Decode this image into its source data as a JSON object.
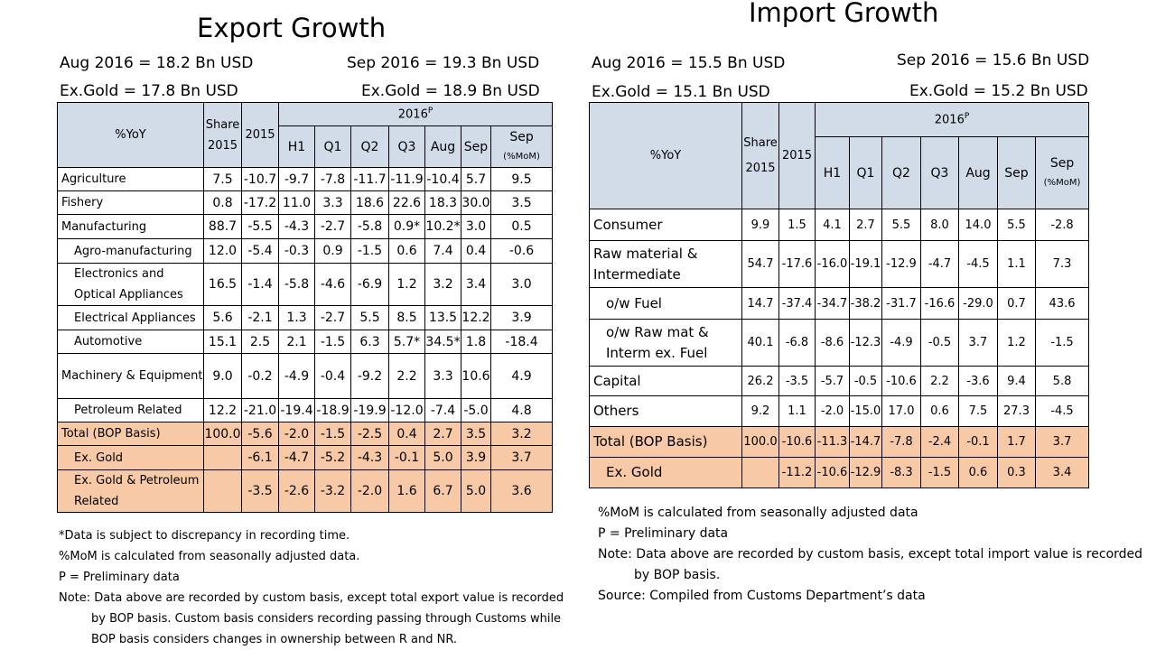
{
  "export": {
    "title": "Export Growth",
    "summary": {
      "aug": "Aug 2016 = 18.2 Bn USD",
      "sep": "Sep 2016 = 19.3 Bn USD",
      "aug_exgold": "Ex.Gold = 17.8 Bn USD",
      "sep_exgold": "Ex.Gold = 18.9 Bn USD"
    },
    "headers": {
      "yoy": "%YoY",
      "share1": "Share",
      "share2": "2015",
      "y2015": "2015",
      "period": "2016",
      "period_sup": "P",
      "cols": [
        "H1",
        "Q1",
        "Q2",
        "Q3",
        "Aug",
        "Sep"
      ],
      "mom1": "Sep",
      "mom2": "(%MoM)"
    },
    "rows": [
      {
        "label": "Agriculture",
        "values": [
          "7.5",
          "-10.7",
          "-9.7",
          "-7.8",
          "-11.7",
          "-11.9",
          "-10.4",
          "5.7",
          "9.5"
        ]
      },
      {
        "label": "Fishery",
        "values": [
          "0.8",
          "-17.2",
          "11.0",
          "3.3",
          "18.6",
          "22.6",
          "18.3",
          "30.0",
          "3.5"
        ]
      },
      {
        "label": "Manufacturing",
        "values": [
          "88.7",
          "-5.5",
          "-4.3",
          "-2.7",
          "-5.8",
          "0.9*",
          "10.2*",
          "3.0",
          "0.5"
        ]
      },
      {
        "label": "Agro-manufacturing",
        "values": [
          "12.0",
          "-5.4",
          "-0.3",
          "0.9",
          "-1.5",
          "0.6",
          "7.4",
          "0.4",
          "-0.6"
        ]
      },
      {
        "label": "Electronics and Optical Appliances",
        "values": [
          "16.5",
          "-1.4",
          "-5.8",
          "-4.6",
          "-6.9",
          "1.2",
          "3.2",
          "3.4",
          "3.0"
        ]
      },
      {
        "label": "Electrical Appliances",
        "values": [
          "5.6",
          "-2.1",
          "1.3",
          "-2.7",
          "5.5",
          "8.5",
          "13.5",
          "12.2",
          "3.9"
        ]
      },
      {
        "label": "Automotive",
        "values": [
          "15.1",
          "2.5",
          "2.1",
          "-1.5",
          "6.3",
          "5.7*",
          "34.5*",
          "1.8",
          "-18.4"
        ]
      },
      {
        "label": "Machinery & Equipment",
        "values": [
          "9.0",
          "-0.2",
          "-4.9",
          "-0.4",
          "-9.2",
          "2.2",
          "3.3",
          "10.6",
          "4.9"
        ]
      },
      {
        "label": "Petroleum Related",
        "values": [
          "12.2",
          "-21.0",
          "-19.4",
          "-18.9",
          "-19.9",
          "-12.0",
          "-7.4",
          "-5.0",
          "4.8"
        ]
      },
      {
        "label": "Total (BOP Basis)",
        "values": [
          "100.0",
          "-5.6",
          "-2.0",
          "-1.5",
          "-2.5",
          "0.4",
          "2.7",
          "3.5",
          "3.2"
        ]
      },
      {
        "label": "Ex. Gold",
        "values": [
          "",
          "-6.1",
          "-4.7",
          "-5.2",
          "-4.3",
          "-0.1",
          "5.0",
          "3.9",
          "3.7"
        ]
      },
      {
        "label": "Ex. Gold & Petroleum Related",
        "values": [
          "",
          "-3.5",
          "-2.6",
          "-3.2",
          "-2.0",
          "1.6",
          "6.7",
          "5.0",
          "3.6"
        ]
      }
    ],
    "notes": [
      "*Data is subject to discrepancy in recording time.",
      "%MoM is calculated from seasonally adjusted data.",
      "P = Preliminary data",
      "Note: Data above are recorded by custom basis, except total export value is recorded",
      "by BOP basis. Custom basis considers recording passing through Customs while",
      "BOP basis considers changes in ownership between R and NR."
    ]
  },
  "import": {
    "title": "Import Growth",
    "summary": {
      "aug": "Aug 2016 = 15.5 Bn USD",
      "sep": "Sep 2016 = 15.6  Bn USD",
      "aug_exgold": "Ex.Gold = 15.1  Bn USD",
      "sep_exgold": "Ex.Gold = 15.2  Bn USD"
    },
    "headers": {
      "yoy": "%YoY",
      "share1": "Share",
      "share2": "2015",
      "y2015": "2015",
      "period": "2016",
      "period_sup": "P",
      "cols": [
        "H1",
        "Q1",
        "Q2",
        "Q3",
        "Aug",
        "Sep"
      ],
      "mom1": "Sep",
      "mom2": "(%MoM)"
    },
    "rows": [
      {
        "label": "Consumer",
        "values": [
          "9.9",
          "1.5",
          "4.1",
          "2.7",
          "5.5",
          "8.0",
          "14.0",
          "5.5",
          "-2.8"
        ]
      },
      {
        "label": "Raw material & Intermediate",
        "values": [
          "54.7",
          "-17.6",
          "-16.0",
          "-19.1",
          "-12.9",
          "-4.7",
          "-4.5",
          "1.1",
          "7.3"
        ]
      },
      {
        "label": "o/w Fuel",
        "values": [
          "14.7",
          "-37.4",
          "-34.7",
          "-38.2",
          "-31.7",
          "-16.6",
          "-29.0",
          "0.7",
          "43.6"
        ]
      },
      {
        "label": "o/w Raw mat & Interm ex. Fuel",
        "values": [
          "40.1",
          "-6.8",
          "-8.6",
          "-12.3",
          "-4.9",
          "-0.5",
          "3.7",
          "1.2",
          "-1.5"
        ]
      },
      {
        "label": "Capital",
        "values": [
          "26.2",
          "-3.5",
          "-5.7",
          "-0.5",
          "-10.6",
          "2.2",
          "-3.6",
          "9.4",
          "5.8"
        ]
      },
      {
        "label": "Others",
        "values": [
          "9.2",
          "1.1",
          "-2.0",
          "-15.0",
          "17.0",
          "0.6",
          "7.5",
          "27.3",
          "-4.5"
        ]
      },
      {
        "label": "Total (BOP Basis)",
        "values": [
          "100.0",
          "-10.6",
          "-11.3",
          "-14.7",
          "-7.8",
          "-2.4",
          "-0.1",
          "1.7",
          "3.7"
        ]
      },
      {
        "label": "Ex. Gold",
        "values": [
          "",
          "-11.2",
          "-10.6",
          "-12.9",
          "-8.3",
          "-1.5",
          "0.6",
          "0.3",
          "3.4"
        ]
      }
    ],
    "notes": [
      "%MoM is calculated from seasonally adjusted data",
      "P = Preliminary data",
      "Note: Data above are recorded by custom basis, except total import value is recorded",
      "by BOP basis.",
      "Source: Compiled from Customs Department’s data"
    ]
  },
  "colors": {
    "header_fill": "#d2dce9",
    "total_fill": "#f7c9a6"
  }
}
